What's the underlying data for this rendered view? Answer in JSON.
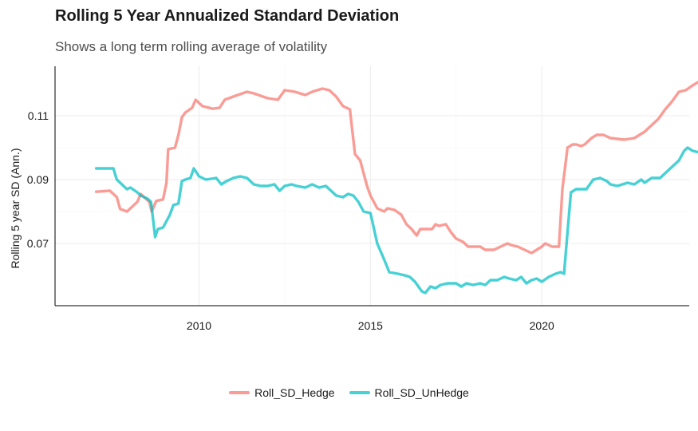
{
  "chart_data": {
    "type": "line",
    "title": "Rolling 5 Year Annualized Standard Deviation",
    "subtitle": "Shows a long term rolling average of volatility",
    "xlabel": "",
    "ylabel": "Rolling 5 year SD (Ann.)",
    "xlim": [
      2005.8,
      2024.3
    ],
    "ylim": [
      0.0505,
      0.1255
    ],
    "x_ticks": [
      2010,
      2015,
      2020
    ],
    "y_ticks": [
      0.07,
      0.09,
      0.11
    ],
    "x_tick_labels": [
      "2010",
      "2015",
      "2020"
    ],
    "y_tick_labels": [
      "0.07",
      "0.09",
      "0.11"
    ],
    "grid": true,
    "legend_position": "bottom",
    "series": [
      {
        "name": "Roll_SD_Hedge",
        "color": "#F8766D",
        "points": [
          [
            2007.0,
            0.0862
          ],
          [
            2007.4,
            0.0865
          ],
          [
            2007.6,
            0.0845
          ],
          [
            2007.7,
            0.0808
          ],
          [
            2007.9,
            0.08
          ],
          [
            2008.0,
            0.081
          ],
          [
            2008.2,
            0.083
          ],
          [
            2008.3,
            0.0855
          ],
          [
            2008.45,
            0.084
          ],
          [
            2008.55,
            0.083
          ],
          [
            2008.62,
            0.08
          ],
          [
            2008.75,
            0.0833
          ],
          [
            2008.95,
            0.0838
          ],
          [
            2009.05,
            0.089
          ],
          [
            2009.1,
            0.0995
          ],
          [
            2009.3,
            0.1
          ],
          [
            2009.4,
            0.104
          ],
          [
            2009.5,
            0.1095
          ],
          [
            2009.6,
            0.111
          ],
          [
            2009.8,
            0.1125
          ],
          [
            2009.9,
            0.115
          ],
          [
            2010.0,
            0.114
          ],
          [
            2010.1,
            0.113
          ],
          [
            2010.4,
            0.1122
          ],
          [
            2010.6,
            0.1125
          ],
          [
            2010.75,
            0.115
          ],
          [
            2011.0,
            0.116
          ],
          [
            2011.4,
            0.1175
          ],
          [
            2011.6,
            0.117
          ],
          [
            2012.0,
            0.1155
          ],
          [
            2012.3,
            0.115
          ],
          [
            2012.5,
            0.118
          ],
          [
            2012.8,
            0.1175
          ],
          [
            2013.1,
            0.1165
          ],
          [
            2013.3,
            0.1175
          ],
          [
            2013.6,
            0.1185
          ],
          [
            2013.8,
            0.118
          ],
          [
            2014.0,
            0.116
          ],
          [
            2014.2,
            0.113
          ],
          [
            2014.4,
            0.112
          ],
          [
            2014.55,
            0.098
          ],
          [
            2014.7,
            0.096
          ],
          [
            2014.9,
            0.088
          ],
          [
            2015.0,
            0.085
          ],
          [
            2015.2,
            0.081
          ],
          [
            2015.4,
            0.08
          ],
          [
            2015.5,
            0.081
          ],
          [
            2015.7,
            0.0805
          ],
          [
            2015.9,
            0.079
          ],
          [
            2016.05,
            0.076
          ],
          [
            2016.2,
            0.0745
          ],
          [
            2016.35,
            0.0725
          ],
          [
            2016.45,
            0.0745
          ],
          [
            2016.6,
            0.0745
          ],
          [
            2016.8,
            0.0745
          ],
          [
            2016.9,
            0.076
          ],
          [
            2017.0,
            0.0755
          ],
          [
            2017.2,
            0.076
          ],
          [
            2017.35,
            0.0735
          ],
          [
            2017.5,
            0.0715
          ],
          [
            2017.7,
            0.0705
          ],
          [
            2017.85,
            0.069
          ],
          [
            2018.0,
            0.069
          ],
          [
            2018.2,
            0.069
          ],
          [
            2018.35,
            0.068
          ],
          [
            2018.6,
            0.068
          ],
          [
            2018.8,
            0.069
          ],
          [
            2019.0,
            0.07
          ],
          [
            2019.1,
            0.0695
          ],
          [
            2019.3,
            0.069
          ],
          [
            2019.5,
            0.068
          ],
          [
            2019.7,
            0.067
          ],
          [
            2019.85,
            0.068
          ],
          [
            2020.0,
            0.069
          ],
          [
            2020.1,
            0.07
          ],
          [
            2020.3,
            0.069
          ],
          [
            2020.5,
            0.069
          ],
          [
            2020.6,
            0.087
          ],
          [
            2020.75,
            0.1
          ],
          [
            2020.9,
            0.101
          ],
          [
            2021.0,
            0.101
          ],
          [
            2021.15,
            0.1005
          ],
          [
            2021.25,
            0.101
          ],
          [
            2021.45,
            0.103
          ],
          [
            2021.6,
            0.104
          ],
          [
            2021.8,
            0.104
          ],
          [
            2022.0,
            0.103
          ],
          [
            2022.4,
            0.1025
          ],
          [
            2022.7,
            0.103
          ],
          [
            2022.85,
            0.104
          ],
          [
            2023.0,
            0.105
          ],
          [
            2023.2,
            0.107
          ],
          [
            2023.4,
            0.109
          ],
          [
            2023.6,
            0.112
          ],
          [
            2023.8,
            0.1145
          ],
          [
            2024.0,
            0.1175
          ],
          [
            2024.2,
            0.118
          ],
          [
            2024.4,
            0.1195
          ],
          [
            2024.6,
            0.1208
          ]
        ]
      },
      {
        "name": "Roll_SD_UnHedge",
        "color": "#00BFC4",
        "points": [
          [
            2007.0,
            0.0935
          ],
          [
            2007.5,
            0.0935
          ],
          [
            2007.6,
            0.09
          ],
          [
            2007.8,
            0.088
          ],
          [
            2007.9,
            0.087
          ],
          [
            2008.0,
            0.0875
          ],
          [
            2008.2,
            0.086
          ],
          [
            2008.3,
            0.085
          ],
          [
            2008.5,
            0.084
          ],
          [
            2008.6,
            0.083
          ],
          [
            2008.72,
            0.072
          ],
          [
            2008.8,
            0.0745
          ],
          [
            2008.95,
            0.075
          ],
          [
            2009.05,
            0.077
          ],
          [
            2009.15,
            0.079
          ],
          [
            2009.25,
            0.082
          ],
          [
            2009.4,
            0.0825
          ],
          [
            2009.5,
            0.0895
          ],
          [
            2009.6,
            0.09
          ],
          [
            2009.75,
            0.0905
          ],
          [
            2009.85,
            0.0935
          ],
          [
            2010.0,
            0.091
          ],
          [
            2010.2,
            0.09
          ],
          [
            2010.5,
            0.0905
          ],
          [
            2010.65,
            0.0885
          ],
          [
            2010.8,
            0.0895
          ],
          [
            2011.0,
            0.0905
          ],
          [
            2011.2,
            0.091
          ],
          [
            2011.4,
            0.0905
          ],
          [
            2011.6,
            0.0885
          ],
          [
            2011.8,
            0.088
          ],
          [
            2012.0,
            0.088
          ],
          [
            2012.2,
            0.0885
          ],
          [
            2012.35,
            0.0865
          ],
          [
            2012.5,
            0.088
          ],
          [
            2012.7,
            0.0885
          ],
          [
            2012.85,
            0.088
          ],
          [
            2013.1,
            0.0875
          ],
          [
            2013.3,
            0.0885
          ],
          [
            2013.5,
            0.0875
          ],
          [
            2013.7,
            0.088
          ],
          [
            2014.0,
            0.085
          ],
          [
            2014.2,
            0.0845
          ],
          [
            2014.35,
            0.0855
          ],
          [
            2014.5,
            0.085
          ],
          [
            2014.65,
            0.083
          ],
          [
            2014.8,
            0.08
          ],
          [
            2015.0,
            0.0795
          ],
          [
            2015.2,
            0.07
          ],
          [
            2015.4,
            0.065
          ],
          [
            2015.55,
            0.061
          ],
          [
            2015.8,
            0.0605
          ],
          [
            2016.0,
            0.06
          ],
          [
            2016.15,
            0.0595
          ],
          [
            2016.3,
            0.058
          ],
          [
            2016.5,
            0.055
          ],
          [
            2016.6,
            0.0545
          ],
          [
            2016.75,
            0.0565
          ],
          [
            2016.9,
            0.056
          ],
          [
            2017.05,
            0.057
          ],
          [
            2017.25,
            0.0575
          ],
          [
            2017.5,
            0.0575
          ],
          [
            2017.65,
            0.0565
          ],
          [
            2017.8,
            0.0575
          ],
          [
            2018.0,
            0.057
          ],
          [
            2018.2,
            0.0575
          ],
          [
            2018.35,
            0.057
          ],
          [
            2018.5,
            0.0585
          ],
          [
            2018.7,
            0.0585
          ],
          [
            2018.9,
            0.0595
          ],
          [
            2019.05,
            0.059
          ],
          [
            2019.25,
            0.0585
          ],
          [
            2019.4,
            0.0595
          ],
          [
            2019.55,
            0.0575
          ],
          [
            2019.7,
            0.0585
          ],
          [
            2019.85,
            0.059
          ],
          [
            2020.0,
            0.058
          ],
          [
            2020.2,
            0.0595
          ],
          [
            2020.4,
            0.0605
          ],
          [
            2020.55,
            0.061
          ],
          [
            2020.65,
            0.0605
          ],
          [
            2020.75,
            0.0735
          ],
          [
            2020.85,
            0.086
          ],
          [
            2021.0,
            0.087
          ],
          [
            2021.3,
            0.087
          ],
          [
            2021.5,
            0.09
          ],
          [
            2021.7,
            0.0905
          ],
          [
            2021.9,
            0.0895
          ],
          [
            2022.0,
            0.0885
          ],
          [
            2022.2,
            0.088
          ],
          [
            2022.5,
            0.089
          ],
          [
            2022.7,
            0.0885
          ],
          [
            2022.9,
            0.09
          ],
          [
            2023.0,
            0.089
          ],
          [
            2023.2,
            0.0905
          ],
          [
            2023.45,
            0.0905
          ],
          [
            2023.6,
            0.092
          ],
          [
            2023.8,
            0.094
          ],
          [
            2024.0,
            0.096
          ],
          [
            2024.15,
            0.099
          ],
          [
            2024.25,
            0.1
          ],
          [
            2024.4,
            0.099
          ],
          [
            2024.6,
            0.0985
          ]
        ]
      }
    ]
  }
}
